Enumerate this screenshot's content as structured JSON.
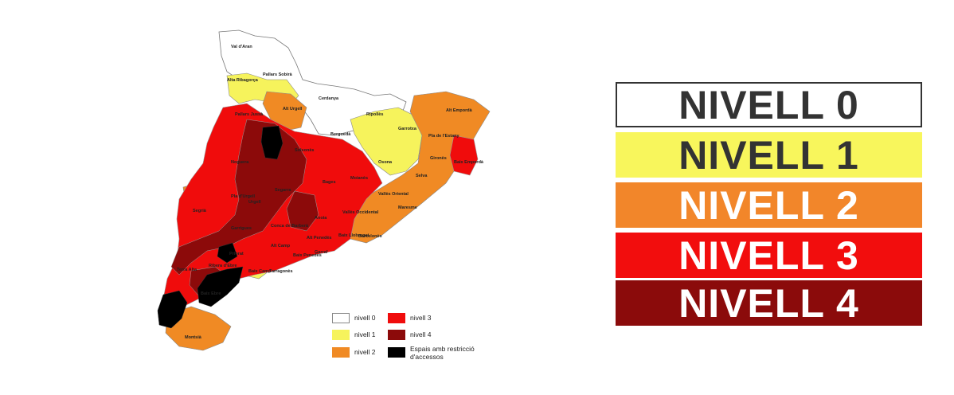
{
  "colors": {
    "nivell0": "#ffffff",
    "nivell1": "#f6f35c",
    "nivell2": "#f08a24",
    "nivell3": "#f00c0c",
    "nivell4": "#8c0a0a",
    "restriccio": "#000000"
  },
  "map": {
    "region_labels": [
      "Val d'Aran",
      "Pallars Sobirà",
      "Alta Ribagorça",
      "Cerdanya",
      "Ripollès",
      "Garrotxa",
      "Alt Empordà",
      "Pla de l'Estany",
      "Gironès",
      "Baix Empordà",
      "Selva",
      "Osona",
      "Berguedà",
      "Solsonès",
      "Pallars Jussà",
      "Alt Urgell",
      "Noguera",
      "Segarra",
      "Bages",
      "Moianès",
      "Vallès Oriental",
      "Maresme",
      "Vallès Occidental",
      "Barcelonès",
      "Baix Llobregat",
      "Anoia",
      "Alt Penedès",
      "Garraf",
      "Baix Penedès",
      "Alt Camp",
      "Tarragonès",
      "Baix Camp",
      "Priorat",
      "Conca de Barberà",
      "Urgell",
      "Pla d'Urgell",
      "Segrià",
      "Garrigues",
      "Ribera d'Ebre",
      "Terra Alta",
      "Baix Ebre",
      "Montsià"
    ]
  },
  "legend_small": {
    "items": [
      {
        "label": "nivell 0"
      },
      {
        "label": "nivell 1"
      },
      {
        "label": "nivell 2"
      },
      {
        "label": "nivell 3"
      },
      {
        "label": "nivell 4"
      },
      {
        "label_line1": "Espais amb restricció",
        "label_line2": "d'accessos"
      }
    ]
  },
  "levels": [
    {
      "label": "NIVELL 0",
      "bg": "#ffffff",
      "fg": "#333333"
    },
    {
      "label": "NIVELL 1",
      "bg": "#f8f65c",
      "fg": "#333333"
    },
    {
      "label": "NIVELL 2",
      "bg": "#f2862a",
      "fg": "#ffffff"
    },
    {
      "label": "NIVELL 3",
      "bg": "#f20d0d",
      "fg": "#ffffff"
    },
    {
      "label": "NIVELL 4",
      "bg": "#8b0b0b",
      "fg": "#ffffff"
    }
  ]
}
